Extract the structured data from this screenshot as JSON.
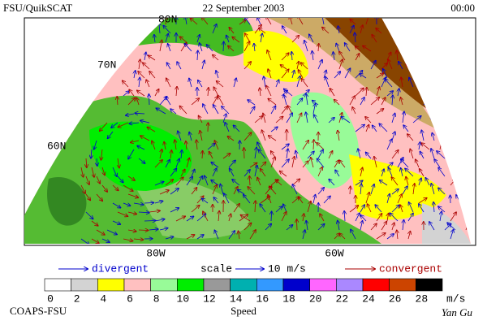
{
  "header": {
    "left": "FSU/QuikSCAT",
    "center": "22 September 2003",
    "right": "00:00"
  },
  "map": {
    "lat_labels": [
      "80N",
      "70N",
      "60N"
    ],
    "lon_labels": [
      "80W",
      "60W"
    ]
  },
  "legend": {
    "divergent": "divergent",
    "scale": "scale",
    "scale_value": "10 m/s",
    "convergent": "convergent"
  },
  "colorbar": {
    "labels": [
      0,
      2,
      4,
      6,
      8,
      10,
      12,
      14,
      16,
      18,
      20,
      22,
      24,
      26,
      28
    ],
    "unit": "m/s",
    "colors": [
      "#ffffff",
      "#d3d3d3",
      "#ffff00",
      "#ffc0c0",
      "#98fb98",
      "#00ee00",
      "#999999",
      "#00b0b0",
      "#3399ff",
      "#0000cc",
      "#ff66ff",
      "#aa88ff",
      "#ff0000",
      "#cc4400",
      "#000000"
    ],
    "title": "Speed"
  },
  "footer": {
    "left": "COAPS-FSU",
    "right": "Yan Gu"
  }
}
